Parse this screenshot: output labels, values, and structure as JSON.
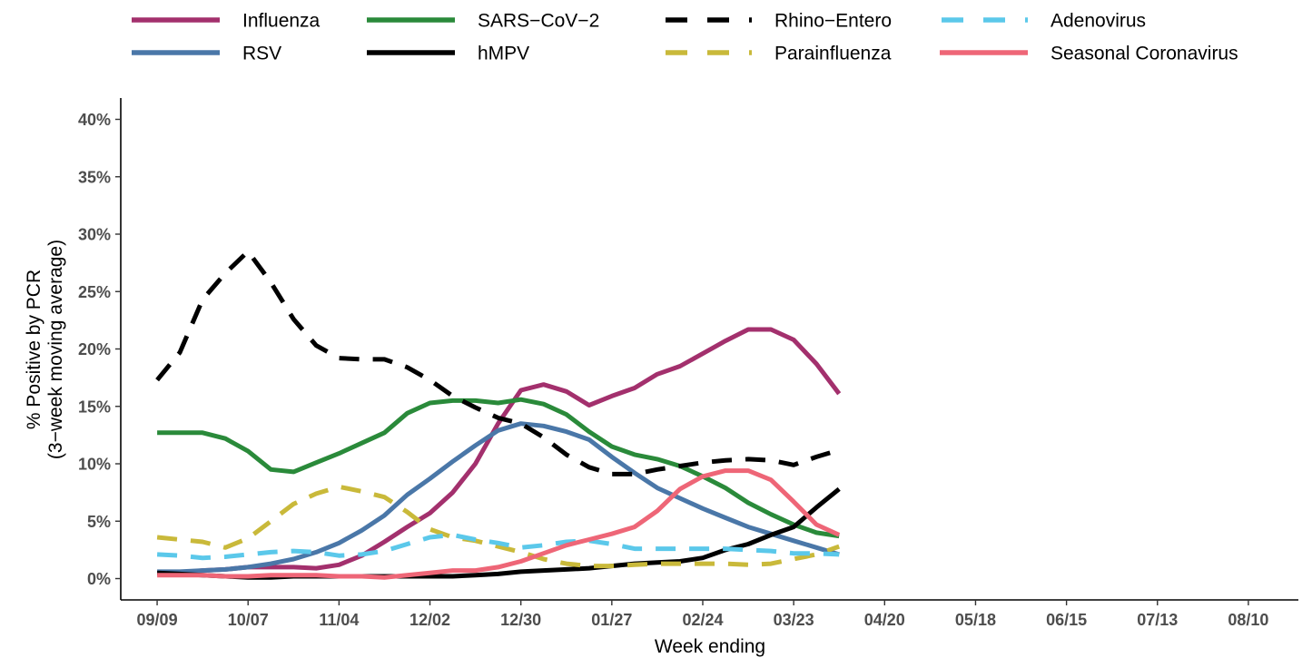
{
  "chart_data": {
    "type": "line",
    "xlabel": "Week ending",
    "ylabel": [
      "% Positive by PCR",
      "(3−week moving average)"
    ],
    "ylim": [
      0,
      40
    ],
    "yticks": [
      0,
      5,
      10,
      15,
      20,
      25,
      30,
      35,
      40
    ],
    "ytick_labels": [
      "0%",
      "5%",
      "10%",
      "15%",
      "20%",
      "25%",
      "30%",
      "35%",
      "40%"
    ],
    "xticks": [
      0,
      4,
      8,
      12,
      16,
      20,
      24,
      28,
      32,
      36,
      40,
      44,
      48
    ],
    "xtick_labels": [
      "09/09",
      "10/07",
      "11/04",
      "12/02",
      "12/30",
      "01/27",
      "02/24",
      "03/23",
      "04/20",
      "05/18",
      "06/15",
      "07/13",
      "08/10"
    ],
    "xlim": [
      -1.6,
      50.2
    ],
    "grid": false,
    "legend_position": "top",
    "series": [
      {
        "name": "Influenza",
        "color": "#a3306d",
        "dash": "solid",
        "values": [
          0.5,
          0.5,
          0.7,
          0.8,
          1.0,
          1.0,
          1.0,
          0.9,
          1.2,
          2.0,
          3.2,
          4.5,
          5.7,
          7.5,
          10.0,
          13.5,
          16.4,
          16.9,
          16.3,
          15.1,
          15.9,
          16.6,
          17.8,
          18.5,
          19.6,
          20.7,
          21.7,
          21.7,
          20.8,
          18.7,
          16.1
        ]
      },
      {
        "name": "RSV",
        "color": "#4a77a8",
        "dash": "solid",
        "values": [
          0.6,
          0.6,
          0.7,
          0.8,
          1.0,
          1.3,
          1.7,
          2.3,
          3.1,
          4.2,
          5.5,
          7.3,
          8.7,
          10.2,
          11.6,
          12.9,
          13.5,
          13.3,
          12.8,
          12.1,
          10.6,
          9.2,
          7.9,
          7.0,
          6.1,
          5.3,
          4.5,
          3.9,
          3.3,
          2.7,
          2.1
        ]
      },
      {
        "name": "SARS−CoV−2",
        "color": "#2a8a3a",
        "dash": "solid",
        "values": [
          12.7,
          12.7,
          12.7,
          12.2,
          11.1,
          9.5,
          9.3,
          10.1,
          10.9,
          11.8,
          12.7,
          14.4,
          15.3,
          15.5,
          15.5,
          15.3,
          15.6,
          15.2,
          14.3,
          12.8,
          11.5,
          10.8,
          10.4,
          9.8,
          8.9,
          7.9,
          6.6,
          5.6,
          4.7,
          4.0,
          3.7
        ]
      },
      {
        "name": "hMPV",
        "color": "#000000",
        "dash": "solid",
        "values": [
          0.5,
          0.4,
          0.3,
          0.2,
          0.1,
          0.1,
          0.2,
          0.2,
          0.2,
          0.2,
          0.2,
          0.2,
          0.2,
          0.2,
          0.3,
          0.4,
          0.6,
          0.7,
          0.8,
          0.9,
          1.1,
          1.3,
          1.4,
          1.5,
          1.8,
          2.5,
          3.0,
          3.8,
          4.5,
          6.2,
          7.8
        ]
      },
      {
        "name": "Rhino−Entero",
        "color": "#000000",
        "dash": "dashed",
        "values": [
          17.3,
          19.7,
          24.3,
          26.6,
          28.5,
          25.8,
          22.6,
          20.3,
          19.2,
          19.1,
          19.1,
          18.4,
          17.3,
          15.9,
          14.9,
          14.0,
          13.5,
          12.3,
          10.8,
          9.7,
          9.1,
          9.1,
          9.5,
          9.8,
          10.1,
          10.3,
          10.4,
          10.3,
          9.9,
          10.6,
          11.2
        ]
      },
      {
        "name": "Parainfluenza",
        "color": "#c9b93a",
        "dash": "dashed",
        "values": [
          3.6,
          3.4,
          3.2,
          2.7,
          3.5,
          5.0,
          6.5,
          7.4,
          8.0,
          7.6,
          7.1,
          5.8,
          4.3,
          3.6,
          3.3,
          2.8,
          2.3,
          1.7,
          1.3,
          1.1,
          1.1,
          1.2,
          1.3,
          1.3,
          1.3,
          1.3,
          1.2,
          1.3,
          1.7,
          2.1,
          2.8
        ]
      },
      {
        "name": "Adenovirus",
        "color": "#5bc8ea",
        "dash": "dashed",
        "values": [
          2.1,
          2.0,
          1.8,
          1.9,
          2.1,
          2.3,
          2.4,
          2.3,
          2.0,
          2.1,
          2.4,
          3.0,
          3.6,
          3.8,
          3.4,
          3.1,
          2.7,
          2.9,
          3.2,
          3.3,
          3.0,
          2.6,
          2.6,
          2.6,
          2.6,
          2.6,
          2.5,
          2.4,
          2.2,
          2.2,
          2.1
        ]
      },
      {
        "name": "Seasonal Coronavirus",
        "color": "#ee6677",
        "dash": "solid",
        "values": [
          0.3,
          0.3,
          0.3,
          0.2,
          0.2,
          0.3,
          0.3,
          0.3,
          0.2,
          0.2,
          0.1,
          0.3,
          0.5,
          0.7,
          0.7,
          1.0,
          1.5,
          2.2,
          2.9,
          3.4,
          3.9,
          4.5,
          5.9,
          7.8,
          8.9,
          9.4,
          9.4,
          8.6,
          6.7,
          4.7,
          3.8
        ]
      }
    ]
  }
}
